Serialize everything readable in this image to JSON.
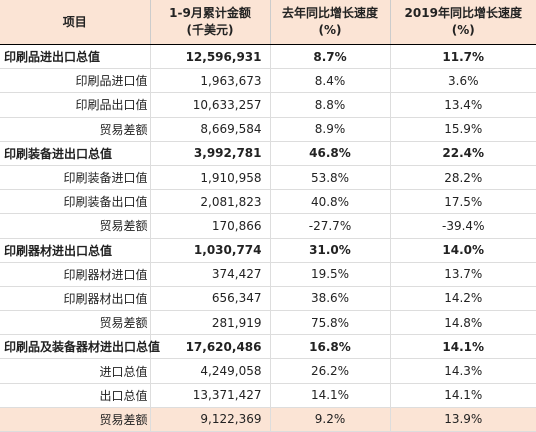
{
  "header": [
    "项目",
    [
      "1-9月累计金额",
      "(千美元)"
    ],
    [
      "去年同比增长速度",
      "(%)"
    ],
    [
      "2019年同比增长速度",
      "(%)"
    ]
  ],
  "groups": [
    {
      "total": [
        "印刷品进出口总值",
        "12,596,931",
        "8.7%",
        "11.7%"
      ],
      "rows": [
        [
          "印刷品进口值",
          "1,963,673",
          "8.4%",
          "3.6%"
        ],
        [
          "印刷品出口值",
          "10,633,257",
          "8.8%",
          "13.4%"
        ],
        [
          "贸易差额",
          "8,669,584",
          "8.9%",
          "15.9%"
        ]
      ]
    },
    {
      "total": [
        "印刷装备进出口总值",
        "3,992,781",
        "46.8%",
        "22.4%"
      ],
      "rows": [
        [
          "印刷装备进口值",
          "1,910,958",
          "53.8%",
          "28.2%"
        ],
        [
          "印刷装备出口值",
          "2,081,823",
          "40.8%",
          "17.5%"
        ],
        [
          "贸易差额",
          "170,866",
          "-27.7%",
          "-39.4%"
        ]
      ]
    },
    {
      "total": [
        "印刷器材进出口总值",
        "1,030,774",
        "31.0%",
        "14.0%"
      ],
      "rows": [
        [
          "印刷器材进口值",
          "374,427",
          "19.5%",
          "13.7%"
        ],
        [
          "印刷器材出口值",
          "656,347",
          "38.6%",
          "14.2%"
        ],
        [
          "贸易差额",
          "281,919",
          "75.8%",
          "14.8%"
        ]
      ]
    },
    {
      "total": [
        "印刷品及装备器材进出口总值",
        "17,620,486",
        "16.8%",
        "14.1%"
      ],
      "rows": [
        [
          "进口总值",
          "4,249,058",
          "26.2%",
          "14.3%"
        ],
        [
          "出口总值",
          "13,371,427",
          "14.1%",
          "14.1%"
        ],
        [
          "贸易差额",
          "9,122,369",
          "9.2%",
          "13.9%"
        ]
      ]
    }
  ]
}
